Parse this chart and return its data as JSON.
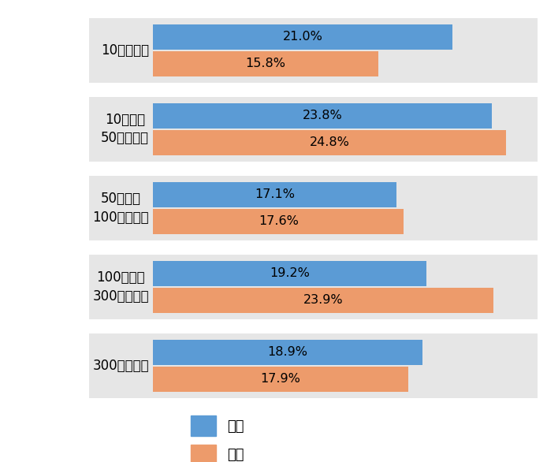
{
  "categories": [
    "10万円未満",
    "10万円〜\n50万円未満",
    "50万円〜\n100万円未満",
    "100万円〜\n300万円未満",
    "300万円以上"
  ],
  "male_values": [
    21.0,
    23.8,
    17.1,
    19.2,
    18.9
  ],
  "female_values": [
    15.8,
    24.8,
    17.6,
    23.9,
    17.9
  ],
  "male_color": "#5B9BD5",
  "female_color": "#ED9B6B",
  "bg_color": "#E6E6E6",
  "white_gap": "#FFFFFF",
  "bar_height": 0.32,
  "max_val": 26.5,
  "legend_male": "男性",
  "legend_female": "女性",
  "tick_fontsize": 12,
  "value_fontsize": 11.5
}
